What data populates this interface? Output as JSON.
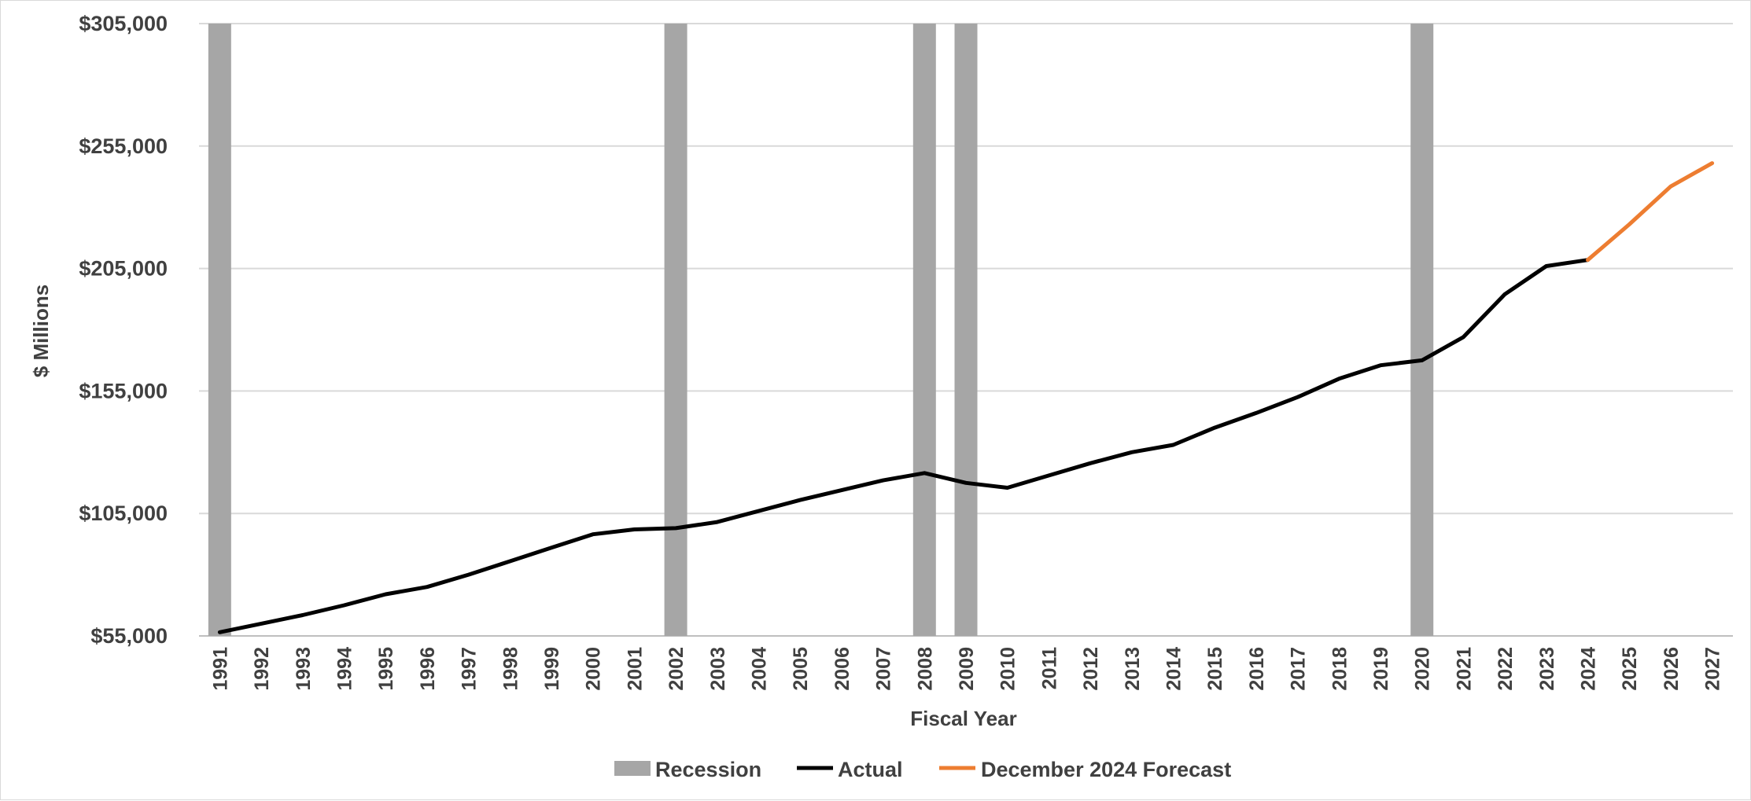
{
  "chart_data": {
    "type": "line",
    "title": "",
    "xlabel": "Fiscal Year",
    "ylabel": "$ Millions",
    "ylim": [
      55000,
      305000
    ],
    "yticks": [
      55000,
      105000,
      155000,
      205000,
      255000,
      305000
    ],
    "ytick_labels": [
      "$55,000",
      "$105,000",
      "$155,000",
      "$205,000",
      "$255,000",
      "$305,000"
    ],
    "grid": "horizontal",
    "legend_position": "bottom",
    "categories": [
      "1991",
      "1992",
      "1993",
      "1994",
      "1995",
      "1996",
      "1997",
      "1998",
      "1999",
      "2000",
      "2001",
      "2002",
      "2003",
      "2004",
      "2005",
      "2006",
      "2007",
      "2008",
      "2009",
      "2010",
      "2011",
      "2012",
      "2013",
      "2014",
      "2015",
      "2016",
      "2017",
      "2018",
      "2019",
      "2020",
      "2021",
      "2022",
      "2023",
      "2024",
      "2025",
      "2026",
      "2027"
    ],
    "recession_years": [
      "1991",
      "2002",
      "2008",
      "2009",
      "2020"
    ],
    "series": [
      {
        "name": "Actual",
        "color": "#000000",
        "values": [
          56500,
          60000,
          63500,
          67500,
          72000,
          75000,
          80000,
          85500,
          91000,
          96500,
          98500,
          99000,
          101500,
          106000,
          110500,
          114500,
          118500,
          121500,
          117500,
          115500,
          120500,
          125500,
          130000,
          133000,
          140000,
          146000,
          152500,
          160000,
          165500,
          167500,
          177000,
          194500,
          206000,
          208500,
          null,
          null,
          null
        ]
      },
      {
        "name": "December 2024 Forecast",
        "color": "#ED7D31",
        "values": [
          null,
          null,
          null,
          null,
          null,
          null,
          null,
          null,
          null,
          null,
          null,
          null,
          null,
          null,
          null,
          null,
          null,
          null,
          null,
          null,
          null,
          null,
          null,
          null,
          null,
          null,
          null,
          null,
          null,
          null,
          null,
          null,
          null,
          208500,
          223000,
          238500,
          248000
        ]
      }
    ],
    "legend": [
      {
        "name": "Recession",
        "color": "#A6A6A6",
        "kind": "box"
      },
      {
        "name": "Actual",
        "color": "#000000",
        "kind": "line"
      },
      {
        "name": "December 2024 Forecast",
        "color": "#ED7D31",
        "kind": "line"
      }
    ]
  }
}
